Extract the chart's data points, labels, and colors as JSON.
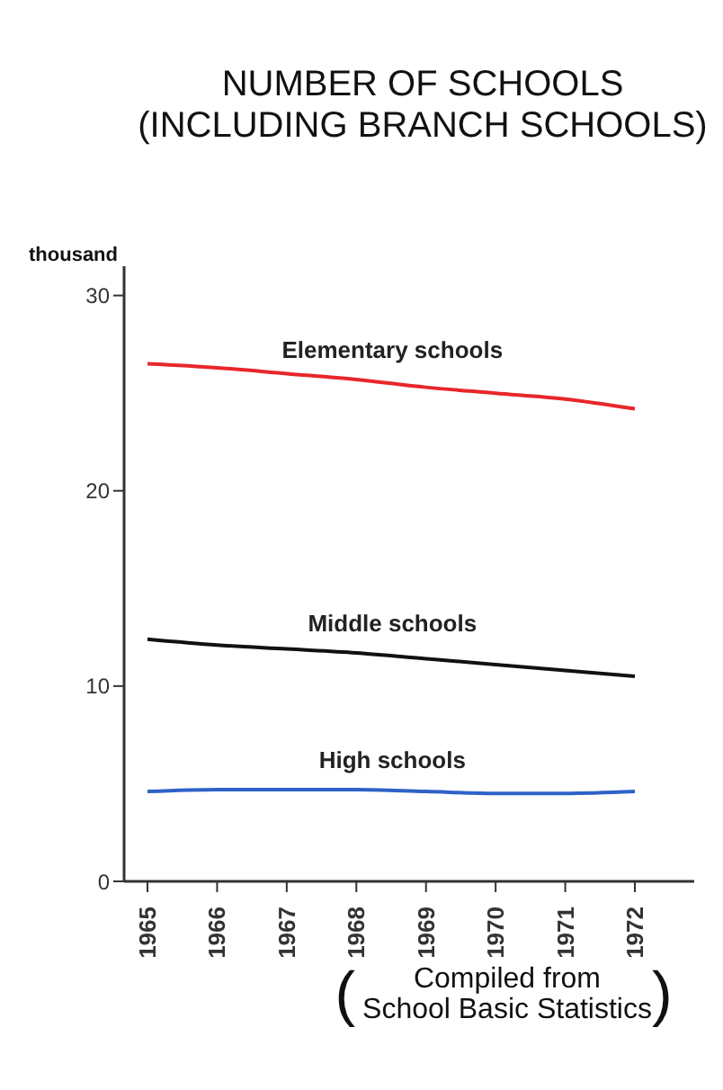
{
  "chart_data": {
    "type": "line",
    "title": "NUMBER OF SCHOOLS\n(INCLUDING BRANCH SCHOOLS)",
    "ylabel": "thousand",
    "categories": [
      "1965",
      "1966",
      "1967",
      "1968",
      "1969",
      "1970",
      "1971",
      "1972"
    ],
    "series": [
      {
        "name": "Elementary schools",
        "color": "#e8262b",
        "values": [
          26.5,
          26.3,
          26.0,
          25.7,
          25.3,
          25.0,
          24.7,
          24.2
        ]
      },
      {
        "name": "Middle schools",
        "color": "#111111",
        "values": [
          12.4,
          12.1,
          11.9,
          11.7,
          11.4,
          11.1,
          10.8,
          10.5
        ]
      },
      {
        "name": "High schools",
        "color": "#2f62c8",
        "values": [
          4.6,
          4.7,
          4.7,
          4.7,
          4.6,
          4.5,
          4.5,
          4.6
        ]
      }
    ],
    "ylim": [
      0,
      31.5
    ],
    "yticks": [
      0,
      10,
      20,
      30
    ],
    "marker": "none",
    "line_style": "solid",
    "annotations": [
      "( Compiled from\nSchool Basic Statistics)"
    ]
  }
}
